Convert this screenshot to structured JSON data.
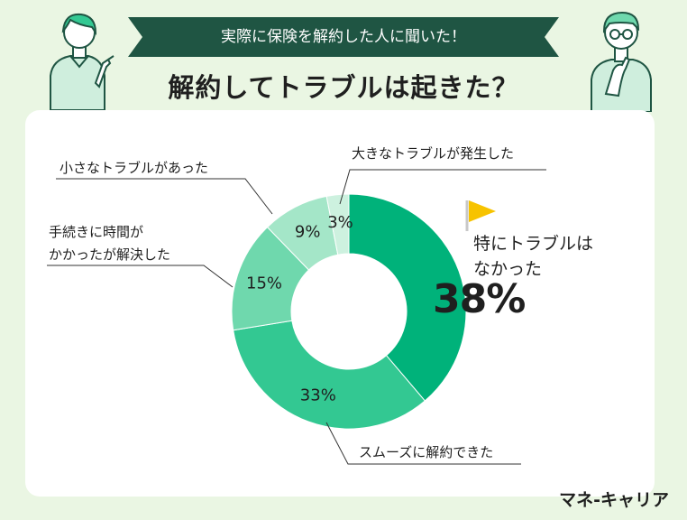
{
  "header": {
    "ribbon_text": "実際に保険を解約した人に聞いた！",
    "title": "解約してトラブルは起きた？"
  },
  "colors": {
    "ribbon": "#1f5543",
    "background": "#eaf6e3",
    "panel": "#ffffff",
    "flag": "#f7c300"
  },
  "chart_data": {
    "type": "pie",
    "title": "解約してトラブルは起きた？",
    "slices": [
      {
        "label": "特にトラブルはなかった",
        "value": 38,
        "display": "38%",
        "color": "#00b27a"
      },
      {
        "label": "スムーズに解約できた",
        "value": 33,
        "display": "33%",
        "color": "#33c892"
      },
      {
        "label": "手続きに時間がかかったが解決した",
        "value": 15,
        "display": "15%",
        "color": "#6fd8ad"
      },
      {
        "label": "小さなトラブルがあった",
        "value": 9,
        "display": "9%",
        "color": "#a4e6c8"
      },
      {
        "label": "大きなトラブルが発生した",
        "value": 3,
        "display": "3%",
        "color": "#cdf1df"
      }
    ]
  },
  "labels": {
    "top_right": "大きなトラブルが発生した",
    "top_left": "小さなトラブルがあった",
    "mid_left_1": "手続きに時間が",
    "mid_left_2": "かかったが解決した",
    "bottom_right": "スムーズに解約できた",
    "callout_1": "特にトラブルは",
    "callout_2": "なかった",
    "callout_pct": "38%"
  },
  "icons": {
    "flag": "flag-icon",
    "person_left": "woman-pointing-illustration",
    "person_right": "man-thinking-illustration"
  },
  "brand": "マネ-キャリア"
}
